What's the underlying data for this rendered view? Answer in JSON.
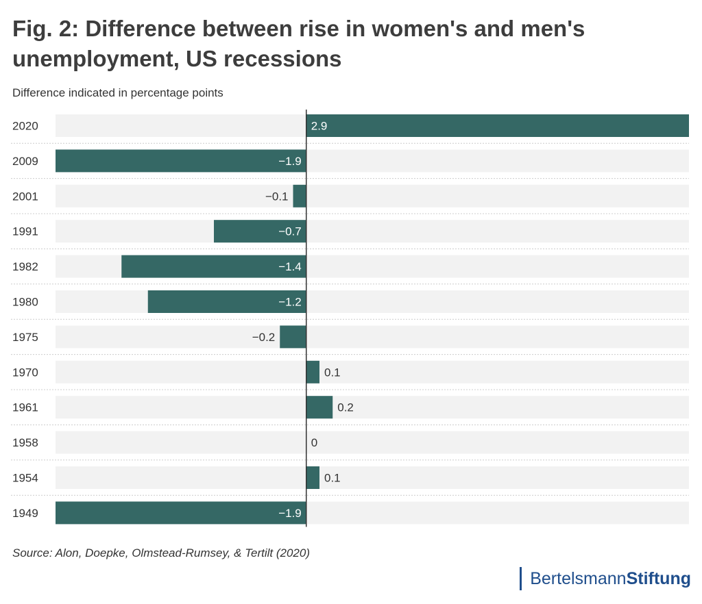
{
  "title": "Fig. 2: Difference between rise in women's and men's unemployment, US recessions",
  "chart_data": {
    "type": "bar",
    "orientation": "horizontal",
    "subtitle": "Difference indicated in percentage points",
    "categories": [
      "2020",
      "2009",
      "2001",
      "1991",
      "1982",
      "1980",
      "1975",
      "1970",
      "1961",
      "1958",
      "1954",
      "1949"
    ],
    "values": [
      2.9,
      -1.9,
      -0.1,
      -0.7,
      -1.4,
      -1.2,
      -0.2,
      0.1,
      0.2,
      0,
      0.1,
      -1.9
    ],
    "labels": [
      "2.9",
      "−1.9",
      "−0.1",
      "−0.7",
      "−1.4",
      "−1.2",
      "−0.2",
      "0.1",
      "0.2",
      "0",
      "0.1",
      "−1.9"
    ],
    "xlim": [
      -1.9,
      2.9
    ],
    "xlabel": "",
    "ylabel": "",
    "grid": false,
    "colors": {
      "bar": "#356865",
      "track": "#f2f2f2",
      "axis": "#333333",
      "separator": "#cccccc"
    }
  },
  "source": "Source: Alon, Doepke, Olmstead-Rumsey, & Tertilt (2020)",
  "logo": {
    "part1": "Bertelsmann",
    "part2": "Stiftung"
  }
}
